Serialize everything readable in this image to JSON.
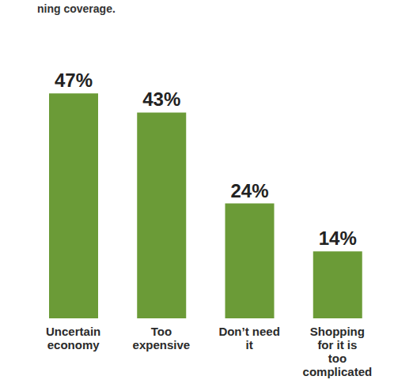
{
  "chart_data": {
    "type": "bar",
    "subtitle": "ning coverage.",
    "categories": [
      "Uncertain economy",
      "Too expensive",
      "Don’t need it",
      "Shopping for it is too complicated"
    ],
    "values": [
      47,
      43,
      24,
      14
    ],
    "value_labels": [
      "47%",
      "43%",
      "24%",
      "14%"
    ],
    "color": "#6b9b37",
    "ylim": [
      0,
      50
    ],
    "data_labels": true,
    "tick_labels": "x",
    "grid": false
  }
}
